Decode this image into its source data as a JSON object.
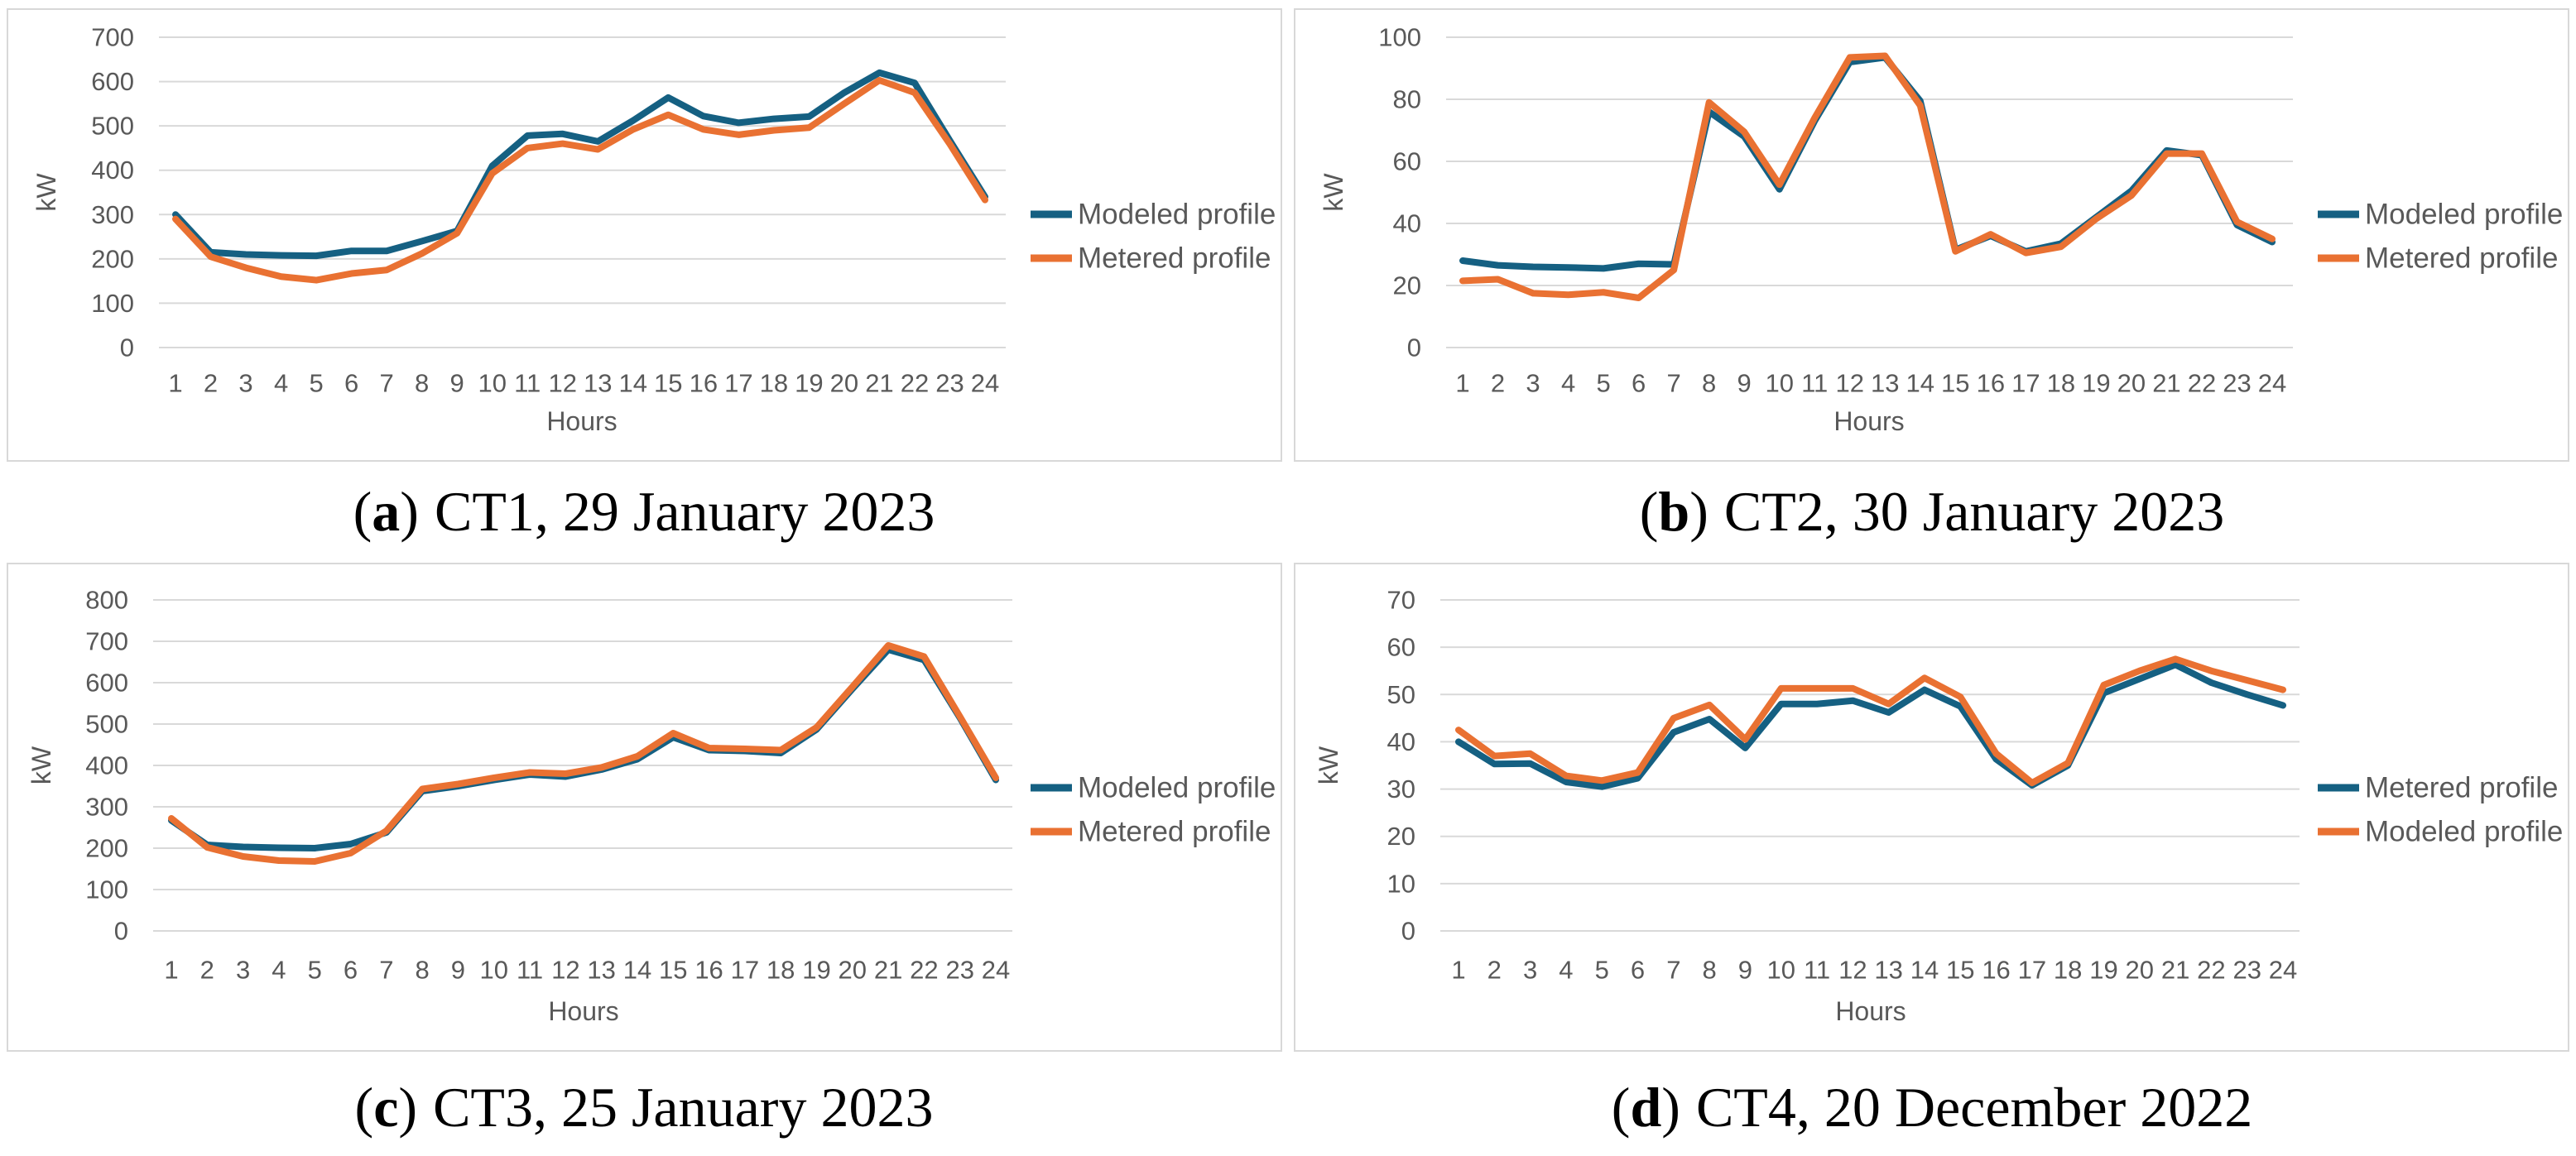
{
  "colors": {
    "blue": "#156082",
    "orange": "#E97132",
    "grid": "#D9D9D9",
    "panel_border": "#D8D8D8",
    "axis_text": "#595959",
    "caption_text": "#000000"
  },
  "axis": {
    "x_title": "Hours",
    "y_title": "kW",
    "hours": [
      1,
      2,
      3,
      4,
      5,
      6,
      7,
      8,
      9,
      10,
      11,
      12,
      13,
      14,
      15,
      16,
      17,
      18,
      19,
      20,
      21,
      22,
      23,
      24
    ]
  },
  "chart_data": [
    {
      "type": "line",
      "id": "a",
      "caption": {
        "open": "(",
        "letter": "a",
        "close": ")",
        "text": "CT1, 29 January 2023"
      },
      "xlabel": "Hours",
      "ylabel": "kW",
      "ylim": [
        0,
        700
      ],
      "y_ticks": [
        700,
        600,
        500,
        400,
        300,
        200,
        100,
        0
      ],
      "series": [
        {
          "name": "Modeled profile",
          "color": "blue",
          "values": [
            300,
            215,
            210,
            208,
            207,
            218,
            218,
            240,
            263,
            410,
            478,
            482,
            465,
            512,
            564,
            522,
            507,
            516,
            521,
            575,
            620,
            597,
            467,
            340
          ]
        },
        {
          "name": "Metered profile",
          "color": "orange",
          "values": [
            290,
            205,
            180,
            160,
            152,
            167,
            175,
            212,
            258,
            393,
            450,
            460,
            447,
            492,
            525,
            492,
            480,
            490,
            496,
            550,
            603,
            575,
            459,
            333
          ]
        }
      ]
    },
    {
      "type": "line",
      "id": "b",
      "caption": {
        "open": "(",
        "letter": "b",
        "close": ")",
        "text": "CT2, 30 January 2023"
      },
      "xlabel": "Hours",
      "ylabel": "kW",
      "ylim": [
        0,
        100
      ],
      "y_ticks": [
        100,
        80,
        60,
        40,
        20,
        0
      ],
      "series": [
        {
          "name": "Modeled profile",
          "color": "blue",
          "values": [
            28,
            26.5,
            26,
            25.8,
            25.5,
            27,
            26.8,
            76,
            68,
            51,
            73,
            92,
            93.5,
            79.5,
            31.5,
            36,
            31,
            33.5,
            42,
            50.5,
            63.5,
            62,
            39.5,
            34
          ]
        },
        {
          "name": "Metered profile",
          "color": "orange",
          "values": [
            21.5,
            22,
            17.5,
            17,
            17.8,
            16,
            25,
            79,
            69.5,
            52.5,
            74,
            93.5,
            94,
            78,
            31,
            36.5,
            30.5,
            32.5,
            41.5,
            49,
            62.5,
            62.5,
            40.5,
            35
          ]
        }
      ]
    },
    {
      "type": "line",
      "id": "c",
      "caption": {
        "open": "(",
        "letter": "c",
        "close": ")",
        "text": "CT3, 25 January 2023"
      },
      "xlabel": "Hours",
      "ylabel": "kW",
      "ylim": [
        0,
        800
      ],
      "y_ticks": [
        800,
        700,
        600,
        500,
        400,
        300,
        200,
        100,
        0
      ],
      "series": [
        {
          "name": "Modeled profile",
          "color": "blue",
          "values": [
            267,
            208,
            203,
            201,
            200,
            210,
            238,
            338,
            350,
            365,
            378,
            373,
            390,
            415,
            468,
            437,
            435,
            430,
            487,
            585,
            680,
            655,
            515,
            365
          ]
        },
        {
          "name": "Metered profile",
          "color": "orange",
          "values": [
            272,
            202,
            180,
            170,
            168,
            188,
            242,
            343,
            355,
            370,
            383,
            380,
            395,
            422,
            478,
            442,
            440,
            437,
            492,
            590,
            690,
            663,
            518,
            370
          ]
        }
      ]
    },
    {
      "type": "line",
      "id": "d",
      "caption": {
        "open": "(",
        "letter": "d",
        "close": ")",
        "text": "CT4, 20 December 2022"
      },
      "xlabel": "Hours",
      "ylabel": "kW",
      "ylim": [
        0,
        70
      ],
      "y_ticks": [
        70,
        60,
        50,
        40,
        30,
        20,
        10,
        0
      ],
      "series": [
        {
          "name": "Metered profile",
          "color": "blue",
          "values": [
            40,
            35.3,
            35.4,
            31.5,
            30.5,
            32.3,
            42,
            44.8,
            38.7,
            48,
            48,
            48.7,
            46.2,
            51,
            47.5,
            36.3,
            30.8,
            35,
            50.3,
            53.3,
            56.3,
            52.5,
            50,
            47.7
          ]
        },
        {
          "name": "Modeled profile",
          "color": "orange",
          "values": [
            42.5,
            37,
            37.5,
            32.8,
            31.8,
            33.5,
            45,
            47.8,
            40.5,
            51.3,
            51.3,
            51.3,
            48,
            53.5,
            49.5,
            37.5,
            31.3,
            35.5,
            52,
            55,
            57.5,
            55,
            53,
            51
          ]
        }
      ]
    }
  ]
}
